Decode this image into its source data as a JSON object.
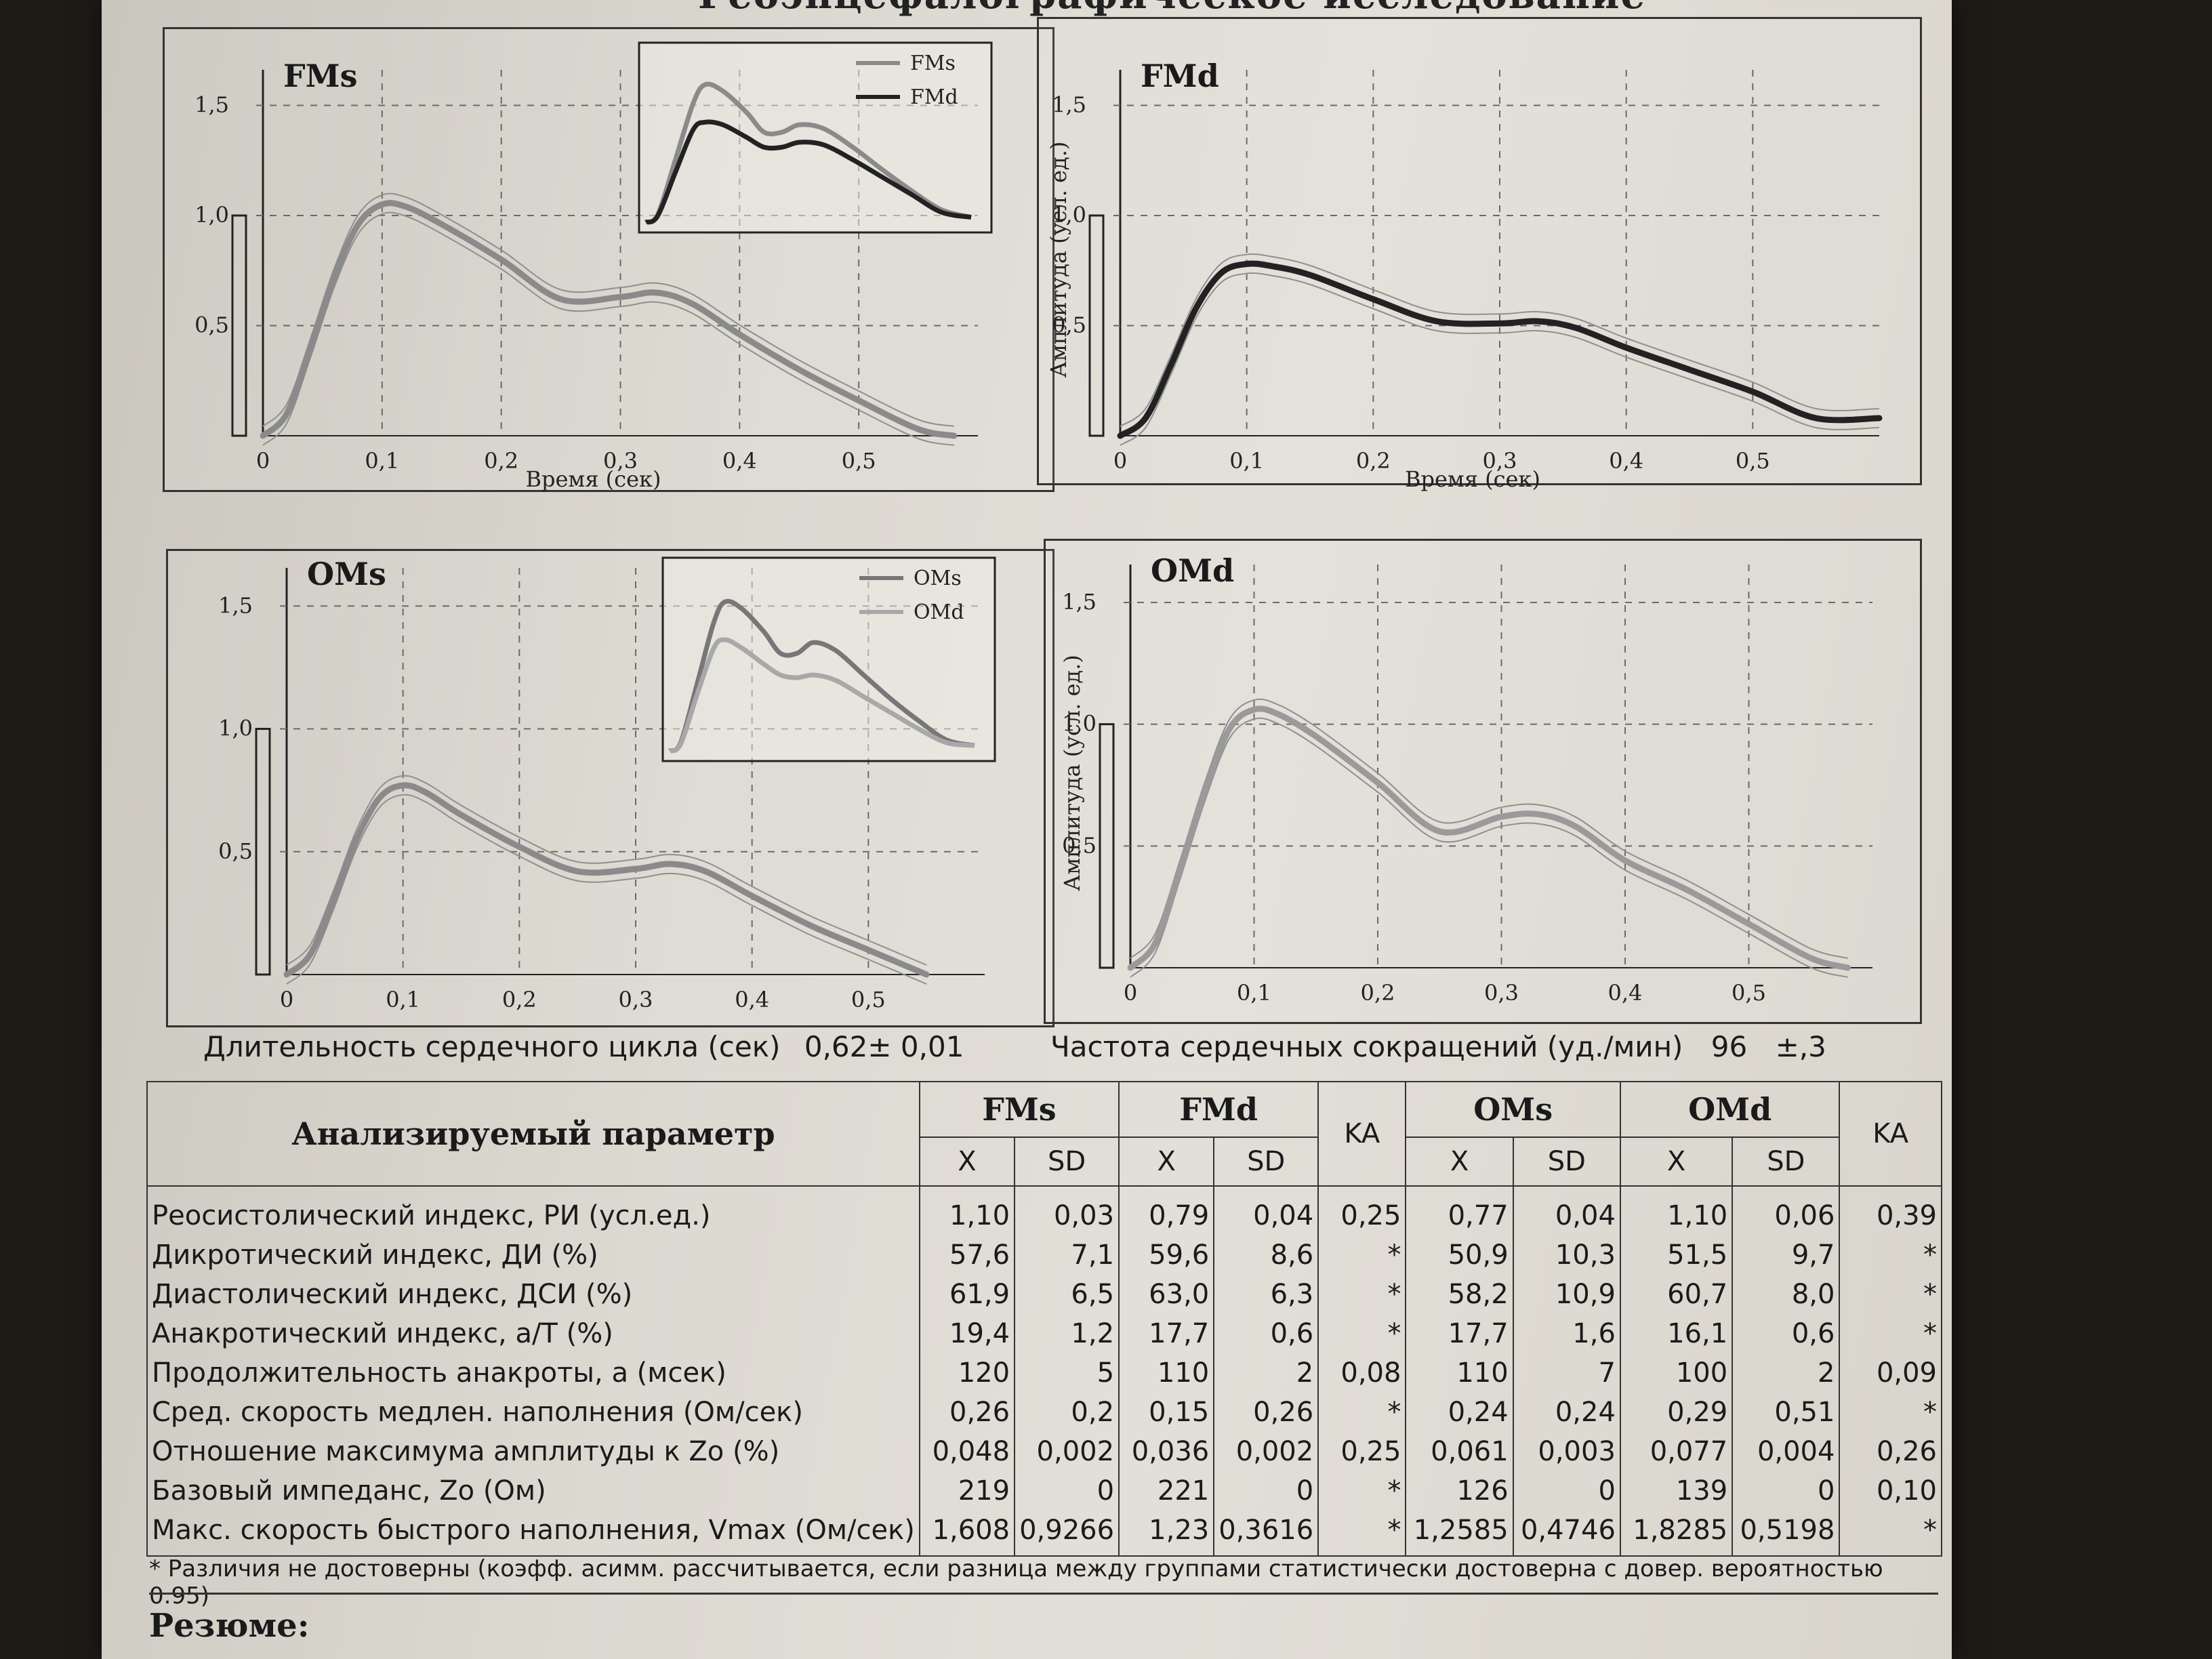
{
  "document": {
    "title": "Реоэнцефалографическое исследование"
  },
  "charts": [
    {
      "id": "fms",
      "label": "FMs",
      "ylabel": "",
      "xlabel": "Время (сек)",
      "legend": [
        "FMs",
        "FMd"
      ]
    },
    {
      "id": "fmd",
      "label": "FMd",
      "ylabel": "Амплитуда (усл. ед.)",
      "xlabel": "Время (сек)",
      "legend": []
    },
    {
      "id": "oms",
      "label": "OMs",
      "ylabel": "",
      "xlabel": "",
      "legend": [
        "OMs",
        "OMd"
      ]
    },
    {
      "id": "omd",
      "label": "OMd",
      "ylabel": "Амплитуда (усл. ед.)",
      "xlabel": "",
      "legend": []
    }
  ],
  "chart_data": [
    {
      "type": "line",
      "title": "FMs",
      "xlabel": "Время (сек)",
      "ylabel": "",
      "xlim": [
        0,
        0.6
      ],
      "ylim": [
        0,
        1.6
      ],
      "xticks": [
        "0",
        "0,1",
        "0,2",
        "0,3",
        "0,4",
        "0,5"
      ],
      "yticks": [
        "0,5",
        "1,0",
        "1,5"
      ],
      "grid": true,
      "scale_bar": [
        0,
        1.0
      ],
      "series": [
        {
          "name": "FMs",
          "color": "#8a8a8a",
          "x": [
            0,
            0.02,
            0.04,
            0.06,
            0.08,
            0.1,
            0.12,
            0.15,
            0.2,
            0.25,
            0.3,
            0.33,
            0.36,
            0.4,
            0.45,
            0.5,
            0.55,
            0.58
          ],
          "y": [
            0,
            0.1,
            0.4,
            0.72,
            0.96,
            1.05,
            1.04,
            0.96,
            0.8,
            0.62,
            0.63,
            0.65,
            0.6,
            0.46,
            0.3,
            0.16,
            0.03,
            0
          ]
        }
      ],
      "inset": {
        "legend_position": "top-right",
        "series": [
          {
            "name": "FMs",
            "color": "#8a8a8a",
            "x": [
              0,
              0.02,
              0.05,
              0.08,
              0.1,
              0.13,
              0.17,
              0.2,
              0.23,
              0.26,
              0.3,
              0.35,
              0.4,
              0.45,
              0.5,
              0.55
            ],
            "y": [
              0,
              0.06,
              0.5,
              0.95,
              1.1,
              1.05,
              0.88,
              0.72,
              0.72,
              0.78,
              0.75,
              0.6,
              0.42,
              0.25,
              0.1,
              0.04
            ]
          },
          {
            "name": "FMd",
            "color": "#222222",
            "x": [
              0,
              0.02,
              0.05,
              0.08,
              0.1,
              0.13,
              0.17,
              0.2,
              0.23,
              0.26,
              0.3,
              0.35,
              0.4,
              0.45,
              0.5,
              0.55
            ],
            "y": [
              0,
              0.05,
              0.4,
              0.74,
              0.8,
              0.78,
              0.68,
              0.6,
              0.6,
              0.64,
              0.62,
              0.5,
              0.36,
              0.22,
              0.08,
              0.04
            ]
          }
        ]
      }
    },
    {
      "type": "line",
      "title": "FMd",
      "xlabel": "Время (сек)",
      "ylabel": "Амплитуда (усл. ед.)",
      "xlim": [
        0,
        0.6
      ],
      "ylim": [
        0,
        1.6
      ],
      "xticks": [
        "0",
        "0,1",
        "0,2",
        "0,3",
        "0,4",
        "0,5"
      ],
      "yticks": [
        "0,5",
        "1,0",
        "1,5"
      ],
      "grid": true,
      "scale_bar": [
        0,
        1.0
      ],
      "series": [
        {
          "name": "FMd",
          "color": "#222222",
          "x": [
            0,
            0.02,
            0.04,
            0.06,
            0.08,
            0.1,
            0.12,
            0.15,
            0.2,
            0.25,
            0.3,
            0.33,
            0.36,
            0.4,
            0.45,
            0.5,
            0.55,
            0.6
          ],
          "y": [
            0,
            0.08,
            0.32,
            0.58,
            0.74,
            0.78,
            0.77,
            0.73,
            0.62,
            0.52,
            0.51,
            0.52,
            0.49,
            0.4,
            0.3,
            0.2,
            0.08,
            0.08
          ]
        }
      ]
    },
    {
      "type": "line",
      "title": "OMs",
      "xlabel": "",
      "ylabel": "",
      "xlim": [
        0,
        0.6
      ],
      "ylim": [
        0,
        1.6
      ],
      "xticks": [
        "0",
        "0,1",
        "0,2",
        "0,3",
        "0,4",
        "0,5"
      ],
      "yticks": [
        "0,5",
        "1,0",
        "1,5"
      ],
      "grid": true,
      "scale_bar": [
        0,
        1.0
      ],
      "series": [
        {
          "name": "OMs",
          "color": "#8a8a8a",
          "x": [
            0,
            0.02,
            0.04,
            0.06,
            0.08,
            0.1,
            0.12,
            0.15,
            0.2,
            0.25,
            0.3,
            0.33,
            0.36,
            0.4,
            0.45,
            0.5,
            0.55
          ],
          "y": [
            0,
            0.08,
            0.3,
            0.55,
            0.72,
            0.77,
            0.74,
            0.65,
            0.52,
            0.42,
            0.43,
            0.45,
            0.42,
            0.32,
            0.2,
            0.1,
            0
          ]
        }
      ],
      "inset": {
        "legend_position": "top-right",
        "series": [
          {
            "name": "OMs",
            "color": "#777777",
            "x": [
              0,
              0.02,
              0.05,
              0.08,
              0.1,
              0.13,
              0.17,
              0.2,
              0.23,
              0.26,
              0.3,
              0.35,
              0.4,
              0.45,
              0.5,
              0.55
            ],
            "y": [
              0,
              0.06,
              0.5,
              0.95,
              1.1,
              1.05,
              0.88,
              0.72,
              0.72,
              0.8,
              0.74,
              0.56,
              0.38,
              0.22,
              0.08,
              0.04
            ]
          },
          {
            "name": "OMd",
            "color": "#a8a8a8",
            "x": [
              0,
              0.02,
              0.05,
              0.08,
              0.1,
              0.13,
              0.17,
              0.2,
              0.23,
              0.26,
              0.3,
              0.35,
              0.4,
              0.45,
              0.5,
              0.55
            ],
            "y": [
              0,
              0.05,
              0.42,
              0.76,
              0.82,
              0.76,
              0.64,
              0.56,
              0.54,
              0.56,
              0.52,
              0.4,
              0.28,
              0.16,
              0.06,
              0.04
            ]
          }
        ]
      }
    },
    {
      "type": "line",
      "title": "OMd",
      "xlabel": "",
      "ylabel": "Амплитуда (усл. ед.)",
      "xlim": [
        0,
        0.6
      ],
      "ylim": [
        0,
        1.6
      ],
      "xticks": [
        "0",
        "0,1",
        "0,2",
        "0,3",
        "0,4",
        "0,5"
      ],
      "yticks": [
        "0,5",
        "1,0",
        "1,5"
      ],
      "grid": true,
      "scale_bar": [
        0,
        1.0
      ],
      "series": [
        {
          "name": "OMd",
          "color": "#9a9a9a",
          "x": [
            0,
            0.02,
            0.04,
            0.06,
            0.08,
            0.1,
            0.12,
            0.15,
            0.2,
            0.25,
            0.3,
            0.33,
            0.36,
            0.4,
            0.45,
            0.5,
            0.55,
            0.58
          ],
          "y": [
            0,
            0.1,
            0.4,
            0.72,
            0.98,
            1.06,
            1.04,
            0.95,
            0.76,
            0.56,
            0.62,
            0.63,
            0.58,
            0.44,
            0.32,
            0.18,
            0.04,
            0
          ]
        }
      ]
    }
  ],
  "summary": {
    "cycle_label": "Длительность сердечного цикла (сек)",
    "cycle_value": "0,62± 0,01",
    "hr_label": "Частота сердечных сокращений (уд./мин)",
    "hr_value": "96",
    "hr_sd": "±,3"
  },
  "table": {
    "param_header": "Анализируемый параметр",
    "groups": [
      "FMs",
      "FMd",
      "KA",
      "OMs",
      "OMd",
      "KA"
    ],
    "sub": [
      "X",
      "SD",
      "X",
      "SD",
      "X",
      "SD",
      "X",
      "SD"
    ],
    "rows": [
      {
        "name": "Реосистолический индекс, РИ (усл.ед.)",
        "v": [
          "1,10",
          "0,03",
          "0,79",
          "0,04",
          "0,25",
          "0,77",
          "0,04",
          "1,10",
          "0,06",
          "0,39"
        ]
      },
      {
        "name": "Дикротический индекс, ДИ (%)",
        "v": [
          "57,6",
          "7,1",
          "59,6",
          "8,6",
          "*",
          "50,9",
          "10,3",
          "51,5",
          "9,7",
          "*"
        ]
      },
      {
        "name": "Диастолический индекс, ДСИ (%)",
        "v": [
          "61,9",
          "6,5",
          "63,0",
          "6,3",
          "*",
          "58,2",
          "10,9",
          "60,7",
          "8,0",
          "*"
        ]
      },
      {
        "name": "Анакротический индекс, a/T (%)",
        "v": [
          "19,4",
          "1,2",
          "17,7",
          "0,6",
          "*",
          "17,7",
          "1,6",
          "16,1",
          "0,6",
          "*"
        ]
      },
      {
        "name": "Продолжительность анакроты, a (мсек)",
        "v": [
          "120",
          "5",
          "110",
          "2",
          "0,08",
          "110",
          "7",
          "100",
          "2",
          "0,09"
        ]
      },
      {
        "name": "Сред. скорость медлен. наполнения (Ом/сек)",
        "v": [
          "0,26",
          "0,2",
          "0,15",
          "0,26",
          "*",
          "0,24",
          "0,24",
          "0,29",
          "0,51",
          "*"
        ]
      },
      {
        "name": "Отношение максимума амплитуды к Zo (%)",
        "v": [
          "0,048",
          "0,002",
          "0,036",
          "0,002",
          "0,25",
          "0,061",
          "0,003",
          "0,077",
          "0,004",
          "0,26"
        ]
      },
      {
        "name": "Базовый импеданс, Zo (Ом)",
        "v": [
          "219",
          "0",
          "221",
          "0",
          "*",
          "126",
          "0",
          "139",
          "0",
          "0,10"
        ]
      },
      {
        "name": "Макс. скорость быстрого наполнения, Vmax (Ом/сек)",
        "v": [
          "1,608",
          "0,9266",
          "1,23",
          "0,3616",
          "*",
          "1,2585",
          "0,4746",
          "1,8285",
          "0,5198",
          "*"
        ]
      }
    ]
  },
  "footnote": "* Различия не достоверны (коэфф. асимм. рассчитывается, если разница между группами статистически достоверна с довер. вероятностью 0.95)",
  "resume_label": "Резюме:"
}
